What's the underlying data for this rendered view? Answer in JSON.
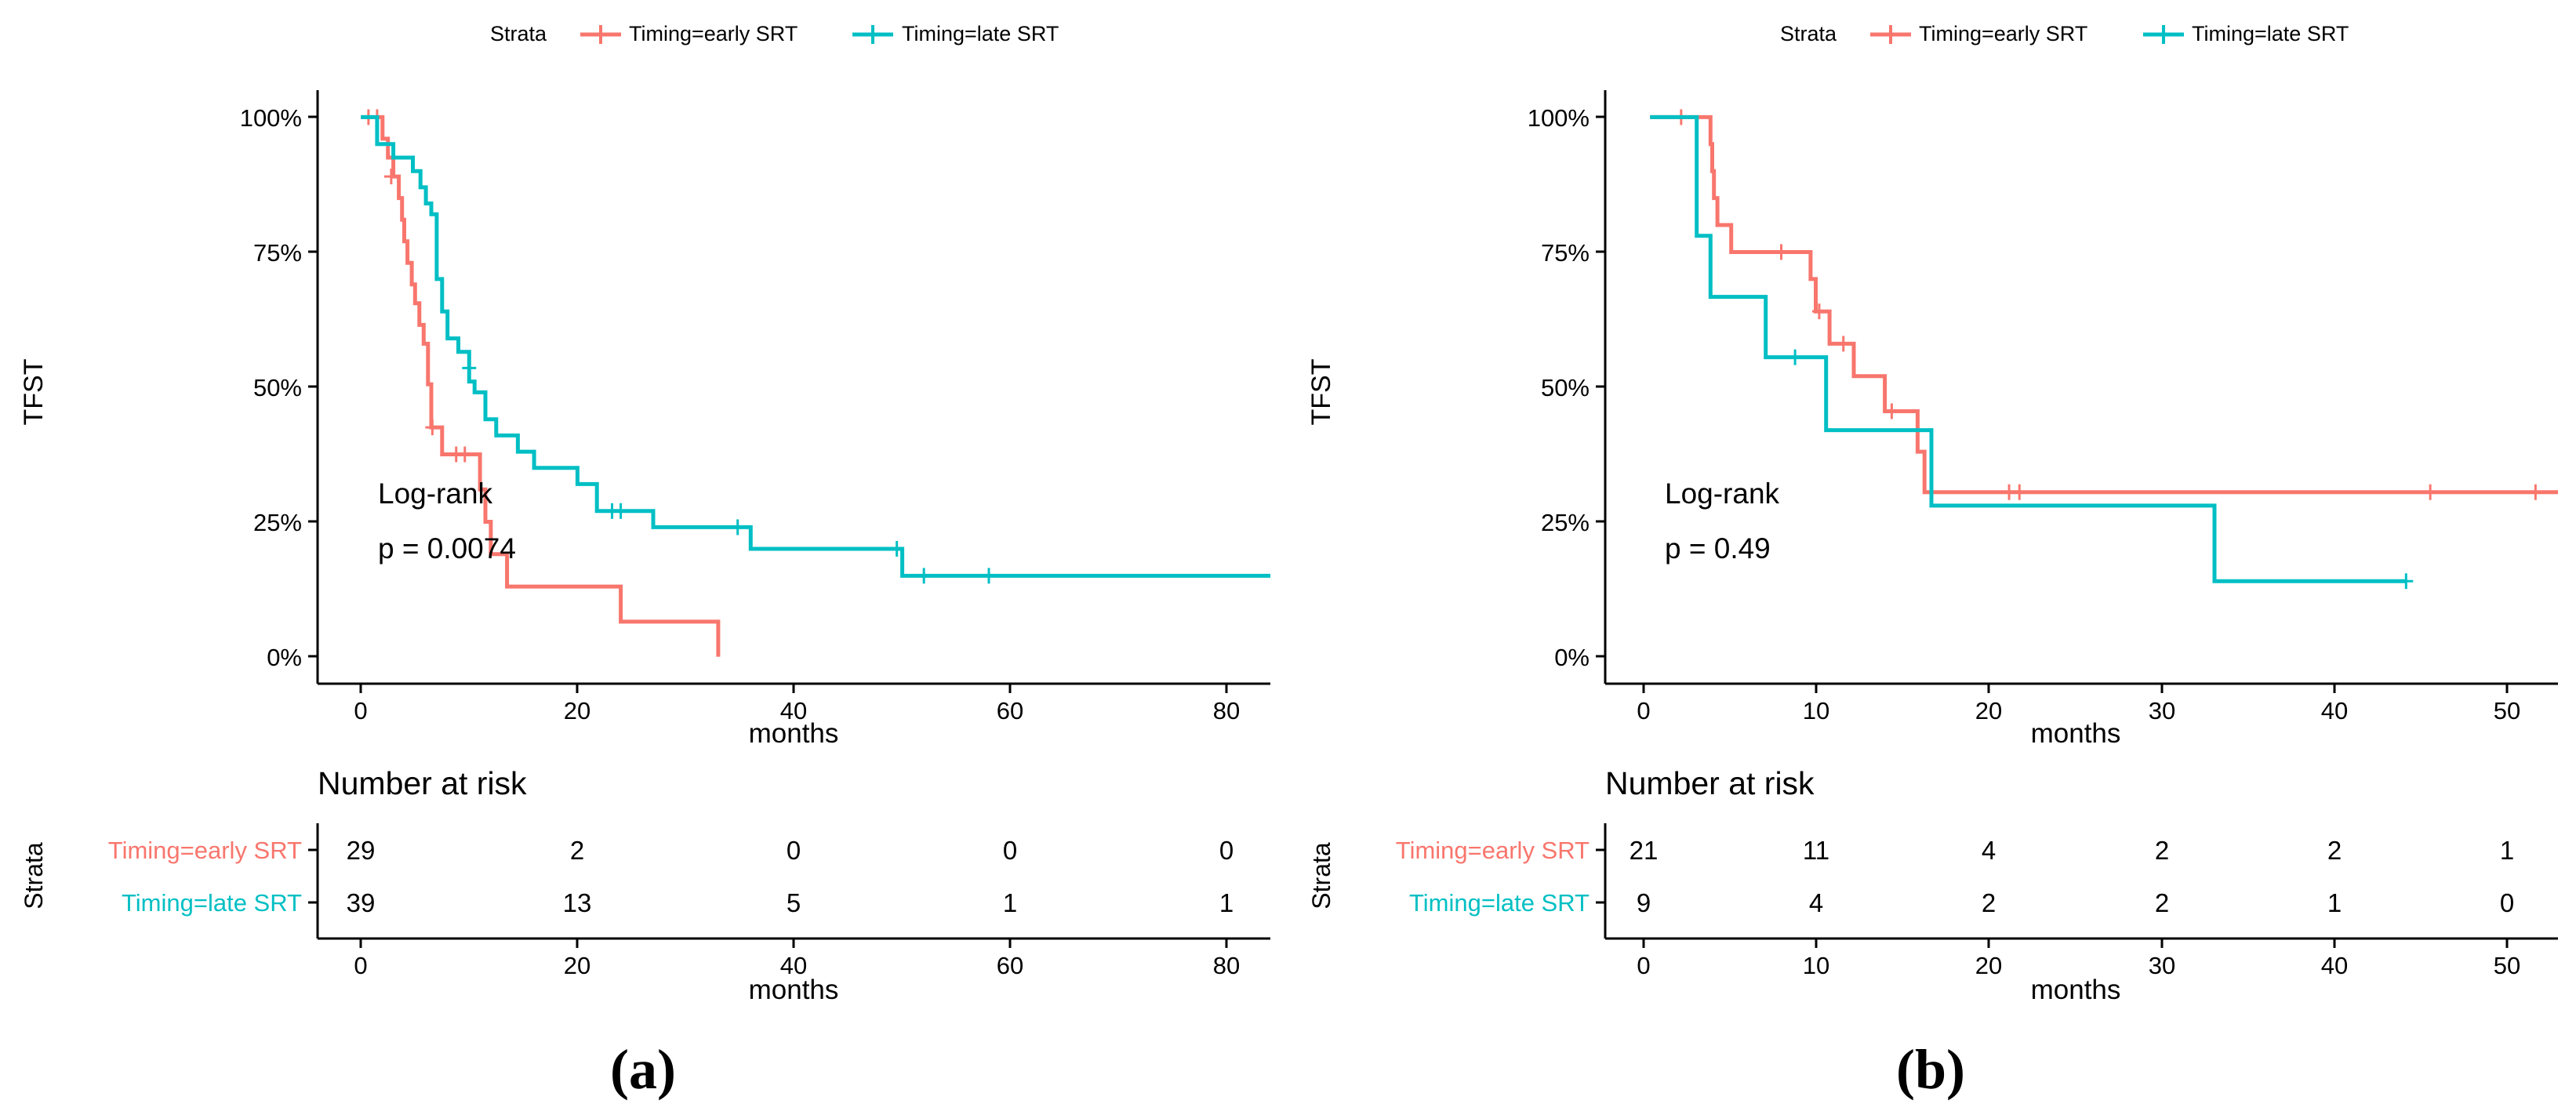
{
  "colors": {
    "early": "#F8766D",
    "late": "#00BFC4",
    "axis": "#000000"
  },
  "chart_data": [
    {
      "type": "line",
      "subtype": "kaplan-meier",
      "caption": "(a)",
      "legend_title": "Strata",
      "legend": [
        "Timing=early SRT",
        "Timing=late SRT"
      ],
      "ylabel": "TFST",
      "xlabel": "months",
      "xlim": [
        -4,
        84
      ],
      "ylim": [
        -0.05,
        1.05
      ],
      "xticks": [
        0,
        20,
        40,
        60,
        80
      ],
      "yticks": [
        0,
        0.25,
        0.5,
        0.75,
        1.0
      ],
      "ytick_labels": [
        "0%",
        "25%",
        "50%",
        "75%",
        "100%"
      ],
      "annotation": {
        "line1": "Log-rank",
        "line2": "p = 0.0074"
      },
      "series": [
        {
          "name": "Timing=early SRT",
          "steps": [
            [
              0,
              1.0
            ],
            [
              2,
              0.96
            ],
            [
              2.5,
              0.925
            ],
            [
              3,
              0.89
            ],
            [
              3.5,
              0.85
            ],
            [
              3.8,
              0.81
            ],
            [
              4,
              0.77
            ],
            [
              4.3,
              0.73
            ],
            [
              4.7,
              0.69
            ],
            [
              5,
              0.655
            ],
            [
              5.4,
              0.615
            ],
            [
              5.8,
              0.58
            ],
            [
              6.2,
              0.505
            ],
            [
              6.5,
              0.425
            ],
            [
              7.5,
              0.375
            ],
            [
              11,
              0.31
            ],
            [
              11.5,
              0.25
            ],
            [
              12,
              0.19
            ],
            [
              13.5,
              0.13
            ],
            [
              24,
              0.065
            ],
            [
              33,
              0.0
            ]
          ],
          "censors": [
            [
              0.7,
              1.0
            ],
            [
              1.5,
              1.0
            ],
            [
              2.8,
              0.89
            ],
            [
              6.6,
              0.425
            ],
            [
              8.8,
              0.375
            ],
            [
              9.6,
              0.375
            ]
          ],
          "end": 33
        },
        {
          "name": "Timing=late SRT",
          "steps": [
            [
              0,
              1.0
            ],
            [
              1.5,
              0.95
            ],
            [
              3,
              0.925
            ],
            [
              4.8,
              0.9
            ],
            [
              5.5,
              0.87
            ],
            [
              6,
              0.84
            ],
            [
              6.5,
              0.82
            ],
            [
              7,
              0.7
            ],
            [
              7.5,
              0.64
            ],
            [
              8,
              0.59
            ],
            [
              9,
              0.565
            ],
            [
              10,
              0.51
            ],
            [
              10.5,
              0.49
            ],
            [
              11.5,
              0.44
            ],
            [
              12.5,
              0.41
            ],
            [
              14.5,
              0.38
            ],
            [
              16,
              0.35
            ],
            [
              20,
              0.32
            ],
            [
              21.8,
              0.27
            ],
            [
              27,
              0.24
            ],
            [
              36,
              0.2
            ],
            [
              50,
              0.15
            ]
          ],
          "censors": [
            [
              10,
              0.535
            ],
            [
              23.2,
              0.27
            ],
            [
              24,
              0.27
            ],
            [
              34.8,
              0.24
            ],
            [
              49.5,
              0.2
            ],
            [
              52,
              0.15
            ],
            [
              58,
              0.15
            ]
          ],
          "end": 84
        }
      ],
      "risk_table": {
        "title": "Number at risk",
        "ylabel": "Strata",
        "xlabel": "months",
        "times": [
          0,
          20,
          40,
          60,
          80
        ],
        "rows": [
          {
            "label": "Timing=early SRT",
            "values": [
              "29",
              "2",
              "0",
              "0",
              "0"
            ]
          },
          {
            "label": "Timing=late SRT",
            "values": [
              "39",
              "13",
              "5",
              "1",
              "1"
            ]
          }
        ]
      }
    },
    {
      "type": "line",
      "subtype": "kaplan-meier",
      "caption": "(b)",
      "legend_title": "Strata",
      "legend": [
        "Timing=early SRT",
        "Timing=late SRT"
      ],
      "ylabel": "TFST",
      "xlabel": "months",
      "xlim": [
        -2.6,
        52.6
      ],
      "ylim": [
        -0.05,
        1.05
      ],
      "xticks": [
        0,
        10,
        20,
        30,
        40,
        50
      ],
      "yticks": [
        0,
        0.25,
        0.5,
        0.75,
        1.0
      ],
      "ytick_labels": [
        "0%",
        "25%",
        "50%",
        "75%",
        "100%"
      ],
      "annotation": {
        "line1": "Log-rank",
        "line2": "p = 0.49"
      },
      "series": [
        {
          "name": "Timing=early SRT",
          "steps": [
            [
              0,
              1.0
            ],
            [
              3.5,
              0.95
            ],
            [
              3.6,
              0.9
            ],
            [
              3.7,
              0.85
            ],
            [
              3.9,
              0.8
            ],
            [
              4.7,
              0.75
            ],
            [
              9.3,
              0.7
            ],
            [
              9.6,
              0.64
            ],
            [
              10.4,
              0.58
            ],
            [
              11.8,
              0.52
            ],
            [
              13.6,
              0.455
            ],
            [
              15.5,
              0.38
            ],
            [
              15.9,
              0.305
            ]
          ],
          "censors": [
            [
              1.8,
              1.0
            ],
            [
              7.6,
              0.75
            ],
            [
              9.8,
              0.64
            ],
            [
              11.2,
              0.58
            ],
            [
              14,
              0.455
            ],
            [
              20.8,
              0.305
            ],
            [
              21.4,
              0.305
            ],
            [
              45.2,
              0.305
            ],
            [
              51.3,
              0.305
            ]
          ],
          "end": 52.6
        },
        {
          "name": "Timing=late SRT",
          "steps": [
            [
              0,
              1.0
            ],
            [
              2.7,
              0.78
            ],
            [
              3.5,
              0.667
            ],
            [
              6.7,
              0.555
            ],
            [
              10.2,
              0.42
            ],
            [
              16.3,
              0.28
            ],
            [
              32.7,
              0.14
            ]
          ],
          "censors": [
            [
              8.4,
              0.555
            ],
            [
              43.8,
              0.14
            ]
          ],
          "end": 43.8
        }
      ],
      "risk_table": {
        "title": "Number at risk",
        "ylabel": "Strata",
        "xlabel": "months",
        "times": [
          0,
          10,
          20,
          30,
          40,
          50
        ],
        "rows": [
          {
            "label": "Timing=early SRT",
            "values": [
              "21",
              "11",
              "4",
              "2",
              "2",
              "1"
            ]
          },
          {
            "label": "Timing=late SRT",
            "values": [
              "9",
              "4",
              "2",
              "2",
              "1",
              "0"
            ]
          }
        ]
      }
    }
  ]
}
